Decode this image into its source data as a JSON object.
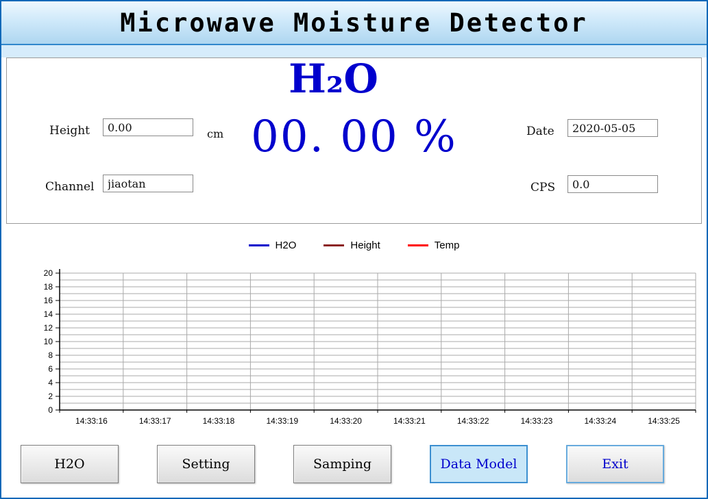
{
  "window": {
    "title": "Microwave Moisture Detector"
  },
  "readout": {
    "heading": "H₂O",
    "value": "00. 00 %",
    "height": {
      "label": "Height",
      "value": "0.00",
      "unit": "cm"
    },
    "channel": {
      "label": "Channel",
      "value": "jiaotan"
    },
    "date": {
      "label": "Date",
      "value": "2020-05-05"
    },
    "cps": {
      "label": "CPS",
      "value": "0.0"
    }
  },
  "chart_data": {
    "type": "line",
    "title": "",
    "legend_position": "top-center",
    "grid": true,
    "ylim": [
      0,
      20
    ],
    "yticks": [
      0,
      2,
      4,
      6,
      8,
      10,
      12,
      14,
      16,
      18,
      20
    ],
    "minor_y_step": 1,
    "x_labels": [
      "14:33:16",
      "14:33:17",
      "14:33:18",
      "14:33:19",
      "14:33:20",
      "14:33:21",
      "14:33:22",
      "14:33:23",
      "14:33:24",
      "14:33:25"
    ],
    "series": [
      {
        "name": "H2O",
        "color": "#0000cc",
        "values": []
      },
      {
        "name": "Height",
        "color": "#8b2222",
        "values": []
      },
      {
        "name": "Temp",
        "color": "#ff0000",
        "values": []
      }
    ],
    "legend": [
      {
        "label": "H2O",
        "color": "#0000cc"
      },
      {
        "label": "Height",
        "color": "#8b2222"
      },
      {
        "label": "Temp",
        "color": "#ff0000"
      }
    ]
  },
  "buttons": [
    {
      "label": "H2O",
      "state": "normal"
    },
    {
      "label": "Setting",
      "state": "normal"
    },
    {
      "label": "Samping",
      "state": "normal"
    },
    {
      "label": "Data Model",
      "state": "active"
    },
    {
      "label": "Exit",
      "state": "focused"
    }
  ],
  "colors": {
    "accent_blue": "#0000cd",
    "frame_border": "#1068b8",
    "titlebar_top": "#eef8fe",
    "titlebar_bottom": "#aed6f0",
    "active_button_bg": "#c9e7f8",
    "gridline": "#a9a9a9"
  }
}
